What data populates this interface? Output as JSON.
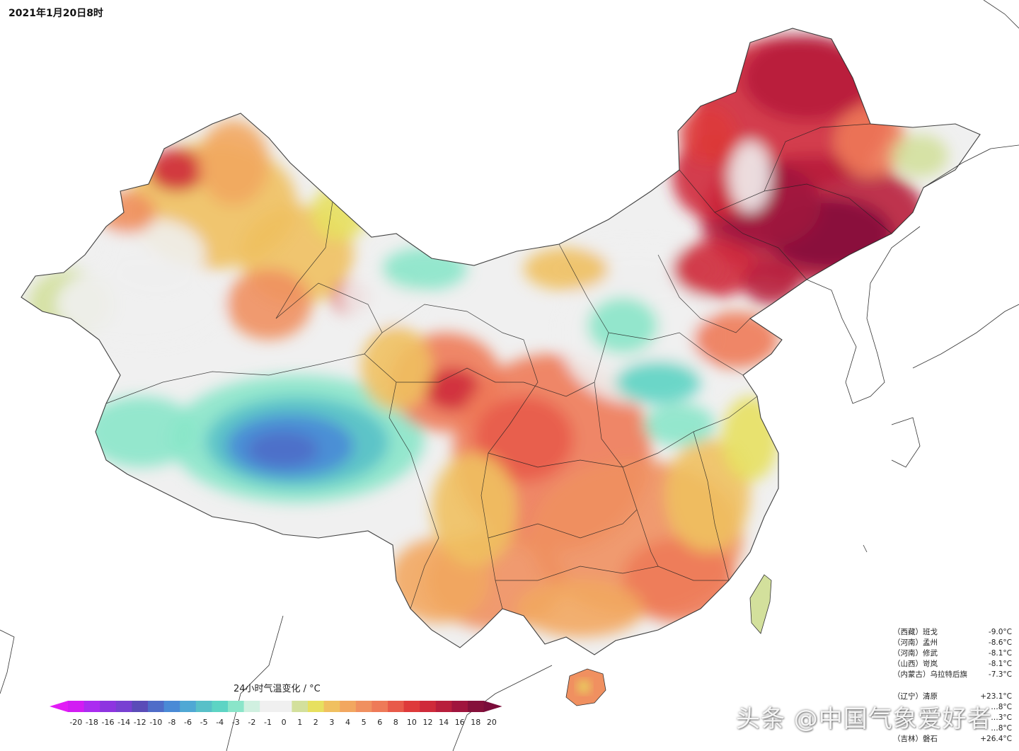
{
  "timestamp": "2021年1月20日8时",
  "legend": {
    "title": "24小时气温变化 / °C",
    "ticks": [
      "-20",
      "-18",
      "-16",
      "-14",
      "-12",
      "-10",
      "-8",
      "-6",
      "-5",
      "-4",
      "-3",
      "-2",
      "-1",
      "0",
      "1",
      "2",
      "3",
      "4",
      "5",
      "6",
      "8",
      "10",
      "12",
      "14",
      "16",
      "18",
      "20"
    ],
    "colors": [
      "#d21cf3",
      "#ab2cf0",
      "#8e34e0",
      "#7840d2",
      "#5a4cb8",
      "#4f6cc8",
      "#4a8ad6",
      "#4fa8d4",
      "#58c0c8",
      "#5dd4c4",
      "#8ae5c9",
      "#d0f0e0",
      "#f0f0f0",
      "#f0f0f0",
      "#d3e09c",
      "#e7e05f",
      "#f0c060",
      "#f2a760",
      "#f09060",
      "#ee7a58",
      "#e85a4a",
      "#de3a3a",
      "#cf2a3a",
      "#b81e3c",
      "#a0153e",
      "#85103a"
    ]
  },
  "stats": {
    "cold": [
      {
        "region": "（西藏）班戈",
        "value": "-9.0°C"
      },
      {
        "region": "（河南）孟州",
        "value": "-8.6°C"
      },
      {
        "region": "（河南）修武",
        "value": "-8.1°C"
      },
      {
        "region": "（山西）岢岚",
        "value": "-8.1°C"
      },
      {
        "region": "（内蒙古）乌拉特后旗",
        "value": "-7.3°C"
      }
    ],
    "warm": [
      {
        "region": "（辽宁）清原",
        "value": "+23.1°C"
      },
      {
        "region": "",
        "value": "…8°C"
      },
      {
        "region": "",
        "value": "…3°C"
      },
      {
        "region": "",
        "value": "…8°C"
      },
      {
        "region": "（吉林）磐石",
        "value": "+26.4°C"
      }
    ]
  },
  "watermark": "头条 @中国气象爱好者",
  "map": {
    "regions": [
      {
        "name": "northeast",
        "level": 16,
        "color": "#b81e3c"
      },
      {
        "name": "northeast-core",
        "level": 20,
        "color": "#85103a"
      },
      {
        "name": "north-china",
        "level": -2,
        "color": "#8ae5c9"
      },
      {
        "name": "central-china",
        "level": 8,
        "color": "#e85a4a"
      },
      {
        "name": "south-china",
        "level": 5,
        "color": "#f09060"
      },
      {
        "name": "tibet-cold",
        "level": -8,
        "color": "#4f6cc8"
      },
      {
        "name": "xinjiang",
        "level": 3,
        "color": "#f0c060"
      },
      {
        "name": "taiwan",
        "level": 1,
        "color": "#d3e09c"
      },
      {
        "name": "hainan",
        "level": 5,
        "color": "#f09060"
      }
    ]
  }
}
